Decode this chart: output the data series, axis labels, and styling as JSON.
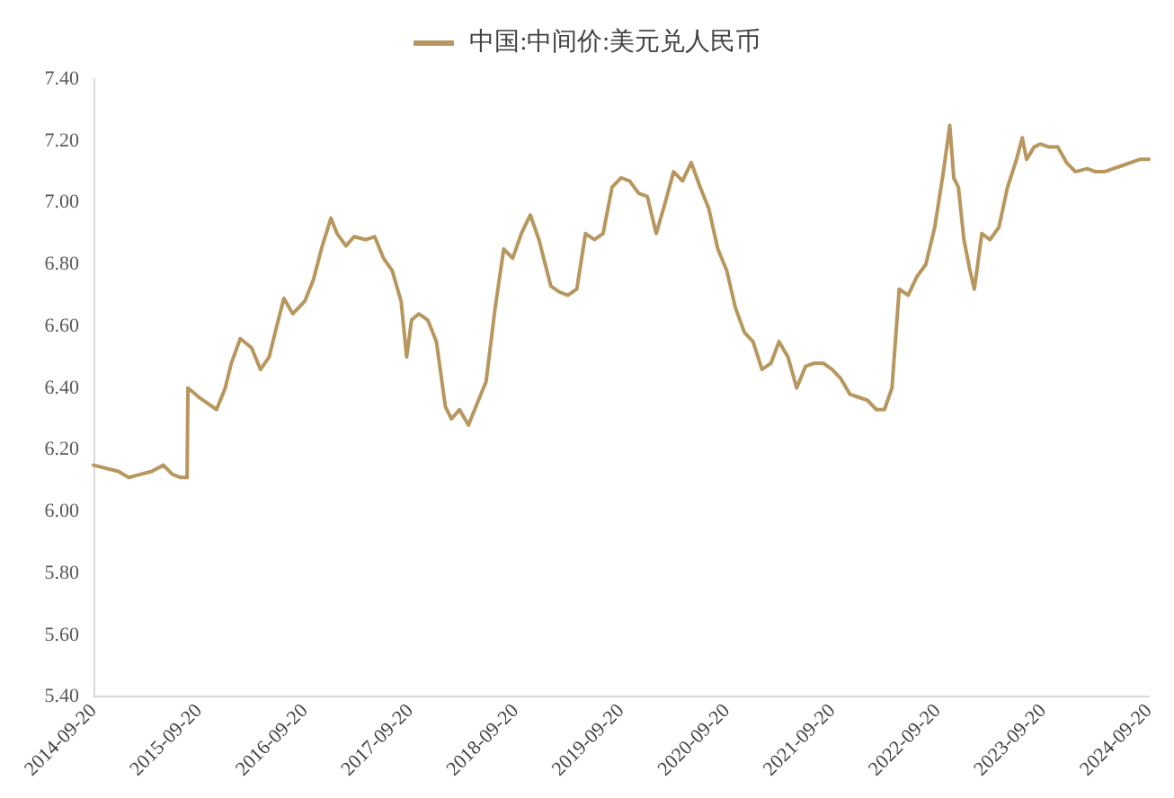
{
  "chart_data": {
    "type": "line",
    "legend": "top",
    "grid": false,
    "marker": "none",
    "line_style": "solid",
    "xlim": [
      "2014-09-20",
      "2024-09-20"
    ],
    "xticks": [
      "2014-09-20",
      "2015-09-20",
      "2016-09-20",
      "2017-09-20",
      "2018-09-20",
      "2019-09-20",
      "2020-09-20",
      "2021-09-20",
      "2022-09-20",
      "2023-09-20",
      "2024-09-20"
    ],
    "ylim": [
      5.4,
      7.4
    ],
    "yticks": [
      {
        "value": 5.4,
        "label": "5.40"
      },
      {
        "value": 5.6,
        "label": "5.60"
      },
      {
        "value": 5.8,
        "label": "5.80"
      },
      {
        "value": 6.0,
        "label": "6.00"
      },
      {
        "value": 6.2,
        "label": "6.20"
      },
      {
        "value": 6.4,
        "label": "6.40"
      },
      {
        "value": 6.6,
        "label": "6.60"
      },
      {
        "value": 6.8,
        "label": "6.80"
      },
      {
        "value": 7.0,
        "label": "7.00"
      },
      {
        "value": 7.2,
        "label": "7.20"
      },
      {
        "value": 7.4,
        "label": "7.40"
      }
    ],
    "x": [
      "2014-09-20",
      "2014-11-01",
      "2014-12-15",
      "2015-01-20",
      "2015-03-01",
      "2015-04-10",
      "2015-05-20",
      "2015-06-20",
      "2015-07-20",
      "2015-08-10",
      "2015-08-13",
      "2015-09-20",
      "2015-10-20",
      "2015-11-20",
      "2015-12-20",
      "2016-01-10",
      "2016-02-10",
      "2016-03-20",
      "2016-04-20",
      "2016-05-20",
      "2016-06-10",
      "2016-07-10",
      "2016-08-10",
      "2016-09-20",
      "2016-10-20",
      "2016-11-20",
      "2016-12-20",
      "2017-01-10",
      "2017-02-10",
      "2017-03-10",
      "2017-04-20",
      "2017-05-20",
      "2017-06-20",
      "2017-07-20",
      "2017-08-20",
      "2017-09-08",
      "2017-09-25",
      "2017-10-20",
      "2017-11-20",
      "2017-12-20",
      "2018-01-20",
      "2018-02-10",
      "2018-03-10",
      "2018-04-10",
      "2018-05-10",
      "2018-06-10",
      "2018-07-10",
      "2018-08-10",
      "2018-09-10",
      "2018-10-10",
      "2018-11-10",
      "2018-12-10",
      "2019-01-20",
      "2019-02-20",
      "2019-03-20",
      "2019-04-20",
      "2019-05-20",
      "2019-06-20",
      "2019-07-20",
      "2019-08-20",
      "2019-09-20",
      "2019-10-20",
      "2019-11-20",
      "2019-12-20",
      "2020-01-20",
      "2020-02-20",
      "2020-03-20",
      "2020-04-20",
      "2020-05-20",
      "2020-06-20",
      "2020-07-20",
      "2020-08-20",
      "2020-09-20",
      "2020-10-20",
      "2020-11-20",
      "2020-12-20",
      "2021-01-20",
      "2021-02-20",
      "2021-03-20",
      "2021-04-20",
      "2021-05-20",
      "2021-06-20",
      "2021-07-20",
      "2021-08-20",
      "2021-09-20",
      "2021-10-20",
      "2021-11-20",
      "2021-12-20",
      "2022-01-20",
      "2022-02-20",
      "2022-03-20",
      "2022-04-15",
      "2022-05-10",
      "2022-06-10",
      "2022-07-10",
      "2022-08-10",
      "2022-09-10",
      "2022-10-10",
      "2022-11-01",
      "2022-11-15",
      "2022-12-01",
      "2022-12-20",
      "2023-01-10",
      "2023-01-25",
      "2023-02-20",
      "2023-03-20",
      "2023-04-20",
      "2023-05-20",
      "2023-06-20",
      "2023-07-10",
      "2023-07-25",
      "2023-08-20",
      "2023-09-10",
      "2023-10-10",
      "2023-11-10",
      "2023-12-10",
      "2024-01-10",
      "2024-02-20",
      "2024-03-20",
      "2024-04-20",
      "2024-05-20",
      "2024-06-20",
      "2024-07-20",
      "2024-08-20",
      "2024-09-20"
    ],
    "series": [
      {
        "name": "中国:中间价:美元兑人民币",
        "color": "#b8975f",
        "values": [
          6.15,
          6.14,
          6.13,
          6.11,
          6.12,
          6.13,
          6.15,
          6.12,
          6.11,
          6.11,
          6.4,
          6.37,
          6.35,
          6.33,
          6.4,
          6.48,
          6.56,
          6.53,
          6.46,
          6.5,
          6.58,
          6.69,
          6.64,
          6.68,
          6.75,
          6.86,
          6.95,
          6.9,
          6.86,
          6.89,
          6.88,
          6.89,
          6.82,
          6.78,
          6.68,
          6.5,
          6.62,
          6.64,
          6.62,
          6.55,
          6.34,
          6.3,
          6.33,
          6.28,
          6.35,
          6.42,
          6.65,
          6.85,
          6.82,
          6.9,
          6.96,
          6.88,
          6.73,
          6.71,
          6.7,
          6.72,
          6.9,
          6.88,
          6.9,
          7.05,
          7.08,
          7.07,
          7.03,
          7.02,
          6.9,
          7.0,
          7.1,
          7.07,
          7.13,
          7.05,
          6.98,
          6.85,
          6.78,
          6.66,
          6.58,
          6.55,
          6.46,
          6.48,
          6.55,
          6.5,
          6.4,
          6.47,
          6.48,
          6.48,
          6.46,
          6.43,
          6.38,
          6.37,
          6.36,
          6.33,
          6.33,
          6.4,
          6.72,
          6.7,
          6.76,
          6.8,
          6.92,
          7.1,
          7.25,
          7.08,
          7.05,
          6.88,
          6.78,
          6.72,
          6.9,
          6.88,
          6.92,
          7.05,
          7.14,
          7.21,
          7.14,
          7.18,
          7.19,
          7.18,
          7.18,
          7.13,
          7.1,
          7.11,
          7.1,
          7.1,
          7.11,
          7.12,
          7.13,
          7.14,
          7.14
        ]
      }
    ]
  }
}
